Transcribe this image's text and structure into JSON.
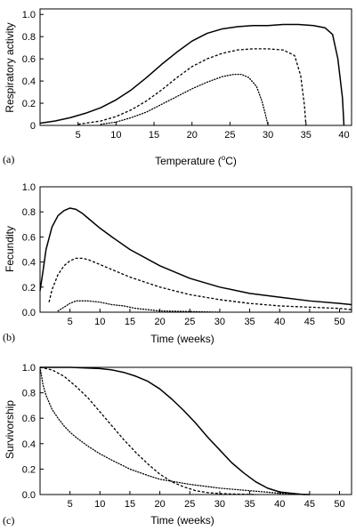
{
  "chart_data": [
    {
      "type": "line",
      "panel_label": "(a)",
      "xlabel": "Temperature (",
      "xlabel_sup": "o",
      "xlabel_tail": "C)",
      "ylabel": "Respiratory activity",
      "xlim": [
        0,
        41
      ],
      "ylim": [
        0,
        1.05
      ],
      "xticks": [
        5,
        10,
        15,
        20,
        25,
        30,
        35,
        40
      ],
      "yticks": [
        0,
        0.2,
        0.4,
        0.6,
        0.8,
        1.0
      ],
      "ytick_labels": [
        "0",
        "0.2",
        "0.4",
        "0.6",
        "0.8",
        "1.0"
      ],
      "grid": false,
      "series": [
        {
          "style": "solid",
          "x": [
            0,
            2,
            4,
            6,
            8,
            10,
            12,
            14,
            16,
            18,
            20,
            22,
            24,
            26,
            28,
            30,
            32,
            34,
            36,
            37.5,
            38.5,
            39.2,
            39.8,
            40
          ],
          "y": [
            0.02,
            0.04,
            0.07,
            0.11,
            0.16,
            0.23,
            0.32,
            0.43,
            0.55,
            0.66,
            0.76,
            0.83,
            0.87,
            0.89,
            0.9,
            0.9,
            0.91,
            0.91,
            0.9,
            0.88,
            0.82,
            0.6,
            0.25,
            0
          ]
        },
        {
          "style": "dashed",
          "x": [
            5,
            8,
            10,
            12,
            14,
            16,
            18,
            20,
            22,
            24,
            26,
            28,
            30,
            32,
            33.5,
            34.3,
            34.8,
            35
          ],
          "y": [
            0.01,
            0.04,
            0.08,
            0.14,
            0.22,
            0.32,
            0.43,
            0.53,
            0.6,
            0.65,
            0.68,
            0.69,
            0.69,
            0.68,
            0.63,
            0.45,
            0.18,
            0
          ]
        },
        {
          "style": "dotted",
          "x": [
            8,
            10,
            12,
            14,
            16,
            18,
            20,
            22,
            24,
            25.5,
            26.5,
            27.5,
            28.5,
            29.2,
            29.7,
            30
          ],
          "y": [
            0.01,
            0.03,
            0.07,
            0.12,
            0.19,
            0.26,
            0.33,
            0.39,
            0.44,
            0.46,
            0.46,
            0.43,
            0.35,
            0.22,
            0.09,
            0
          ]
        }
      ]
    },
    {
      "type": "line",
      "panel_label": "(b)",
      "xlabel": "Time (weeks)",
      "ylabel": "Fecundity",
      "xlim": [
        0,
        52
      ],
      "ylim": [
        0,
        1.0
      ],
      "xticks": [
        5,
        10,
        15,
        20,
        25,
        30,
        35,
        40,
        45,
        50
      ],
      "yticks": [
        0,
        0.2,
        0.4,
        0.6,
        0.8,
        1.0
      ],
      "ytick_labels": [
        "0.0",
        "0.2",
        "0.4",
        "0.6",
        "0.8",
        "1.0"
      ],
      "grid": false,
      "series": [
        {
          "style": "solid",
          "x": [
            0,
            0.5,
            1,
            2,
            3,
            4,
            5,
            6,
            7,
            8,
            10,
            12,
            15,
            20,
            25,
            30,
            35,
            40,
            45,
            50,
            52
          ],
          "y": [
            0.17,
            0.33,
            0.5,
            0.68,
            0.77,
            0.81,
            0.83,
            0.82,
            0.79,
            0.75,
            0.67,
            0.6,
            0.5,
            0.37,
            0.27,
            0.2,
            0.15,
            0.12,
            0.09,
            0.07,
            0.06
          ]
        },
        {
          "style": "dashed",
          "x": [
            1.5,
            2,
            3,
            4,
            5,
            6,
            7,
            8,
            10,
            12,
            15,
            20,
            25,
            30,
            35,
            40,
            45,
            50,
            52
          ],
          "y": [
            0.08,
            0.18,
            0.3,
            0.37,
            0.41,
            0.43,
            0.43,
            0.42,
            0.38,
            0.34,
            0.28,
            0.2,
            0.14,
            0.1,
            0.07,
            0.05,
            0.04,
            0.03,
            0.02
          ]
        },
        {
          "style": "dotted",
          "x": [
            3,
            4,
            5,
            6,
            7,
            8,
            10,
            12,
            14,
            16,
            18,
            20,
            25,
            30
          ],
          "y": [
            0.01,
            0.04,
            0.07,
            0.09,
            0.09,
            0.09,
            0.08,
            0.06,
            0.05,
            0.03,
            0.02,
            0.01,
            0.005,
            0
          ]
        }
      ]
    },
    {
      "type": "line",
      "panel_label": "(c)",
      "xlabel": "Time (weeks)",
      "ylabel": "Survivorship",
      "xlim": [
        0,
        52
      ],
      "ylim": [
        0,
        1.0
      ],
      "xticks": [
        5,
        10,
        15,
        20,
        25,
        30,
        35,
        40,
        45,
        50
      ],
      "yticks": [
        0,
        0.2,
        0.4,
        0.6,
        0.8,
        1.0
      ],
      "ytick_labels": [
        "0.0",
        "0.2",
        "0.4",
        "0.6",
        "0.8",
        "1.0"
      ],
      "grid": false,
      "series": [
        {
          "style": "solid",
          "x": [
            0,
            5,
            10,
            12,
            14,
            16,
            18,
            20,
            22,
            24,
            26,
            28,
            30,
            32,
            34,
            36,
            38,
            40,
            42,
            44,
            45
          ],
          "y": [
            1.0,
            1.0,
            0.99,
            0.98,
            0.96,
            0.93,
            0.89,
            0.83,
            0.75,
            0.66,
            0.56,
            0.45,
            0.35,
            0.25,
            0.17,
            0.1,
            0.05,
            0.02,
            0.01,
            0,
            0
          ]
        },
        {
          "style": "dashed",
          "x": [
            0,
            2,
            4,
            6,
            8,
            10,
            12,
            14,
            16,
            18,
            20,
            22,
            24,
            26,
            28,
            30,
            32,
            34,
            36
          ],
          "y": [
            1.0,
            0.98,
            0.93,
            0.85,
            0.76,
            0.65,
            0.54,
            0.43,
            0.33,
            0.24,
            0.16,
            0.1,
            0.06,
            0.03,
            0.015,
            0.008,
            0.004,
            0.002,
            0
          ]
        },
        {
          "style": "dotted",
          "x": [
            0,
            0.5,
            1,
            2,
            3,
            4,
            5,
            6,
            8,
            10,
            12,
            15,
            18,
            20,
            25,
            30,
            35,
            40,
            45
          ],
          "y": [
            1.0,
            0.86,
            0.78,
            0.67,
            0.6,
            0.54,
            0.49,
            0.45,
            0.38,
            0.32,
            0.27,
            0.2,
            0.15,
            0.12,
            0.08,
            0.05,
            0.03,
            0.01,
            0
          ]
        }
      ]
    }
  ]
}
